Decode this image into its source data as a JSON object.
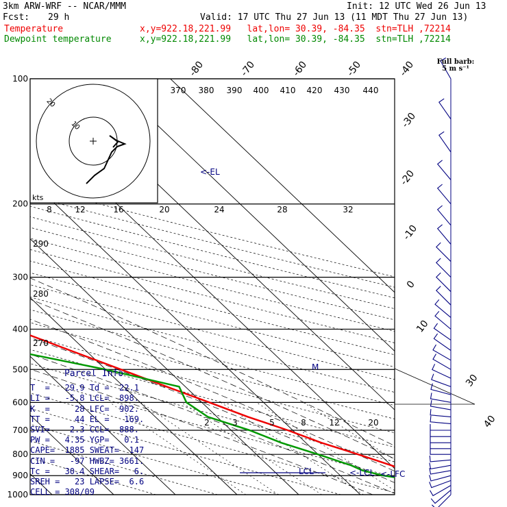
{
  "header": {
    "model": "3km ARW-WRF -- NCAR/MMM",
    "init": "Init: 12 UTC Wed 26 Jun 13",
    "fcst_label": "Fcst:",
    "fcst_hours": "29 h",
    "valid": "Valid: 17 UTC Thu 27 Jun 13 (11 MDT Thu 27 Jun 13)",
    "temp_label": "Temperature",
    "dew_label": "Dewpoint temperature",
    "temp_info": "x,y=922.18,221.99   lat,lon= 30.39, -84.35  stn=TLH ,72214",
    "dew_info": "x,y=922.18,221.99   lat,lon= 30.39, -84.35  stn=TLH ,72214"
  },
  "barb_header": {
    "line1": "Full barb:",
    "line2": "5 m s⁻¹"
  },
  "parcel_info": {
    "title": "Parcel Info",
    "rows": [
      "T  =   29.9 Td =  22.1",
      "LI =   -5.8 LCL=  898.",
      "K  =     28 LFC=  902.",
      "TT =     44 EL =   169.",
      "SVI=    2.3 CCL=  888.",
      "PW =   4.35 YGP=   0.1",
      "CAPE=  1885 SWEAT=  147",
      "CIN =   -97 HWBZ= 3661.",
      "Tc =   30.4 SHEAR=   6.",
      "SREH =   23 LAPSE=  6.6",
      "CELL = 308/09"
    ]
  },
  "colors": {
    "temperature": "#ee0000",
    "dewpoint": "#009900",
    "label_navy": "#000080"
  },
  "chart_data": {
    "type": "line",
    "subtype": "skew-T log-p",
    "y_axis": {
      "label": "",
      "log_scale": true,
      "ticks": [
        100,
        200,
        300,
        400,
        500,
        600,
        700,
        800,
        900,
        1000
      ],
      "ylim": [
        1000,
        100
      ]
    },
    "isotherm_labels": [
      "-80",
      "-70",
      "-60",
      "-50",
      "-40",
      "-30",
      "-20",
      "-10",
      "0",
      "10",
      "30",
      "40"
    ],
    "theta_labels_top": [
      "370",
      "380",
      "390",
      "400",
      "410",
      "420",
      "430",
      "440"
    ],
    "theta_labels_left": [
      "290",
      "280",
      "270"
    ],
    "mixing_ratio_labels": [
      "2",
      "3",
      "5",
      "8",
      "12",
      "20"
    ],
    "hodograph": {
      "ring_labels": [
        "10",
        "20"
      ],
      "speed_scale_label": "kts",
      "speed_scale_ticks": [
        "8",
        "12",
        "16",
        "20",
        "24",
        "28",
        "32"
      ]
    },
    "annotations": [
      "<-EL",
      "LCL",
      "<-LCL",
      "<-LFC",
      "M"
    ],
    "series": [
      {
        "name": "Temperature",
        "points": [
          {
            "p": 1000,
            "t": 31.5
          },
          {
            "p": 975,
            "t": 29.5
          },
          {
            "p": 950,
            "t": 27.5
          },
          {
            "p": 925,
            "t": 25.4
          },
          {
            "p": 900,
            "t": 23.2
          },
          {
            "p": 850,
            "t": 20.0
          },
          {
            "p": 800,
            "t": 16.5
          },
          {
            "p": 750,
            "t": 12.5
          },
          {
            "p": 700,
            "t": 9.2
          },
          {
            "p": 650,
            "t": 5.0
          },
          {
            "p": 600,
            "t": 1.2
          },
          {
            "p": 550,
            "t": -3.0
          },
          {
            "p": 500,
            "t": -7.5
          },
          {
            "p": 450,
            "t": -12.5
          },
          {
            "p": 400,
            "t": -18.0
          },
          {
            "p": 350,
            "t": -25.0
          },
          {
            "p": 300,
            "t": -33.0
          },
          {
            "p": 250,
            "t": -42.5
          },
          {
            "p": 225,
            "t": -49.0
          },
          {
            "p": 200,
            "t": -55.5
          },
          {
            "p": 175,
            "t": -63.0
          },
          {
            "p": 160,
            "t": -68.0
          },
          {
            "p": 150,
            "t": -70.5
          },
          {
            "p": 140,
            "t": -71.0
          },
          {
            "p": 125,
            "t": -70.0
          },
          {
            "p": 110,
            "t": -68.0
          },
          {
            "p": 100,
            "t": -66.5
          }
        ]
      },
      {
        "name": "Dewpoint temperature",
        "points": [
          {
            "p": 1000,
            "t": 22.5
          },
          {
            "p": 975,
            "t": 22.0
          },
          {
            "p": 950,
            "t": 22.0
          },
          {
            "p": 925,
            "t": 21.5
          },
          {
            "p": 900,
            "t": 17.0
          },
          {
            "p": 875,
            "t": 14.5
          },
          {
            "p": 850,
            "t": 13.5
          },
          {
            "p": 800,
            "t": 10.0
          },
          {
            "p": 750,
            "t": 6.0
          },
          {
            "p": 700,
            "t": 3.0
          },
          {
            "p": 650,
            "t": -1.5
          },
          {
            "p": 600,
            "t": -2.5
          },
          {
            "p": 550,
            "t": -1.0
          },
          {
            "p": 500,
            "t": -10.0
          },
          {
            "p": 450,
            "t": -22.0
          },
          {
            "p": 400,
            "t": -35.0
          },
          {
            "p": 375,
            "t": -42.0
          },
          {
            "p": 350,
            "t": -45.0
          },
          {
            "p": 300,
            "t": -52.0
          },
          {
            "p": 260,
            "t": -57.0
          },
          {
            "p": 230,
            "t": -62.0
          },
          {
            "p": 210,
            "t": -66.5
          },
          {
            "p": 180,
            "t": -74.0
          },
          {
            "p": 165,
            "t": -79.0
          },
          {
            "p": 150,
            "t": -82.5
          },
          {
            "p": 140,
            "t": -84.5
          },
          {
            "p": 125,
            "t": -86.5
          },
          {
            "p": 110,
            "t": -88.5
          },
          {
            "p": 100,
            "t": -89.5
          }
        ]
      }
    ],
    "wind_barbs": [
      {
        "p": 1000,
        "dir": 225,
        "spd_ms": 5
      },
      {
        "p": 975,
        "dir": 230,
        "spd_ms": 5
      },
      {
        "p": 950,
        "dir": 240,
        "spd_ms": 5
      },
      {
        "p": 925,
        "dir": 250,
        "spd_ms": 5
      },
      {
        "p": 900,
        "dir": 255,
        "spd_ms": 5
      },
      {
        "p": 875,
        "dir": 260,
        "spd_ms": 5
      },
      {
        "p": 850,
        "dir": 260,
        "spd_ms": 5
      },
      {
        "p": 825,
        "dir": 265,
        "spd_ms": 5
      },
      {
        "p": 800,
        "dir": 270,
        "spd_ms": 5
      },
      {
        "p": 775,
        "dir": 270,
        "spd_ms": 5
      },
      {
        "p": 750,
        "dir": 270,
        "spd_ms": 5
      },
      {
        "p": 725,
        "dir": 270,
        "spd_ms": 5
      },
      {
        "p": 700,
        "dir": 270,
        "spd_ms": 5
      },
      {
        "p": 675,
        "dir": 275,
        "spd_ms": 5
      },
      {
        "p": 650,
        "dir": 275,
        "spd_ms": 5
      },
      {
        "p": 625,
        "dir": 280,
        "spd_ms": 5
      },
      {
        "p": 600,
        "dir": 280,
        "spd_ms": 5
      },
      {
        "p": 575,
        "dir": 285,
        "spd_ms": 5
      },
      {
        "p": 550,
        "dir": 290,
        "spd_ms": 5
      },
      {
        "p": 525,
        "dir": 295,
        "spd_ms": 5
      },
      {
        "p": 500,
        "dir": 300,
        "spd_ms": 5
      },
      {
        "p": 475,
        "dir": 300,
        "spd_ms": 5
      },
      {
        "p": 450,
        "dir": 305,
        "spd_ms": 5
      },
      {
        "p": 425,
        "dir": 305,
        "spd_ms": 5
      },
      {
        "p": 400,
        "dir": 310,
        "spd_ms": 5
      },
      {
        "p": 375,
        "dir": 310,
        "spd_ms": 5
      },
      {
        "p": 350,
        "dir": 315,
        "spd_ms": 5
      },
      {
        "p": 325,
        "dir": 315,
        "spd_ms": 5
      },
      {
        "p": 300,
        "dir": 315,
        "spd_ms": 5
      },
      {
        "p": 275,
        "dir": 315,
        "spd_ms": 5
      },
      {
        "p": 250,
        "dir": 320,
        "spd_ms": 5
      },
      {
        "p": 225,
        "dir": 320,
        "spd_ms": 5
      },
      {
        "p": 200,
        "dir": 320,
        "spd_ms": 5
      },
      {
        "p": 175,
        "dir": 320,
        "spd_ms": 5
      },
      {
        "p": 150,
        "dir": 325,
        "spd_ms": 5
      },
      {
        "p": 125,
        "dir": 325,
        "spd_ms": 5
      },
      {
        "p": 100,
        "dir": 330,
        "spd_ms": 5
      }
    ]
  }
}
